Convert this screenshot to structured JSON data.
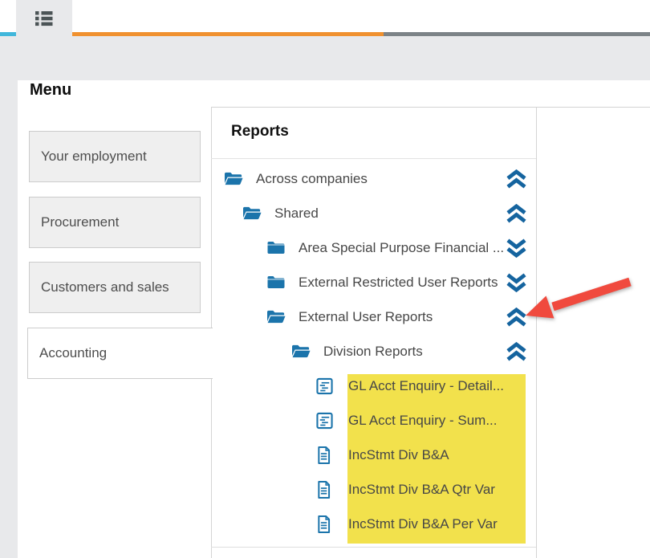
{
  "topbar": {
    "menu_tab_icon": "list-icon"
  },
  "page": {
    "title": "Menu"
  },
  "sidebar": {
    "items": [
      {
        "label": "Your employment",
        "active": false
      },
      {
        "label": "Procurement",
        "active": false
      },
      {
        "label": "Customers and sales",
        "active": false
      },
      {
        "label": "Accounting",
        "active": true
      }
    ]
  },
  "reports": {
    "title": "Reports",
    "tree": [
      {
        "label": "Across companies",
        "level": 0,
        "icon": "folder-open",
        "chevron": "collapse",
        "highlighted": false
      },
      {
        "label": "Shared",
        "level": 1,
        "icon": "folder-open",
        "chevron": "collapse",
        "highlighted": false
      },
      {
        "label": "Area Special Purpose Financial ...",
        "level": 2,
        "icon": "folder-closed",
        "chevron": "expand",
        "highlighted": false
      },
      {
        "label": "External Restricted User Reports",
        "level": 2,
        "icon": "folder-closed",
        "chevron": "expand",
        "highlighted": false
      },
      {
        "label": "External User Reports",
        "level": 2,
        "icon": "folder-open",
        "chevron": "collapse",
        "highlighted": false,
        "annotated": true
      },
      {
        "label": "Division Reports",
        "level": 3,
        "icon": "folder-open",
        "chevron": "collapse",
        "highlighted": false
      },
      {
        "label": "GL Acct Enquiry - Detail...",
        "level": 4,
        "icon": "doc-report",
        "chevron": "none",
        "highlighted": true
      },
      {
        "label": "GL Acct Enquiry - Sum...",
        "level": 4,
        "icon": "doc-report",
        "chevron": "none",
        "highlighted": true
      },
      {
        "label": "IncStmt Div B&A",
        "level": 4,
        "icon": "doc-page",
        "chevron": "none",
        "highlighted": true
      },
      {
        "label": "IncStmt Div B&A Qtr Var",
        "level": 4,
        "icon": "doc-page",
        "chevron": "none",
        "highlighted": true
      },
      {
        "label": "IncStmt Div B&A Per Var",
        "level": 4,
        "icon": "doc-page",
        "chevron": "none",
        "highlighted": true
      }
    ]
  },
  "annotations": {
    "arrow_target": "External User Reports collapse chevron",
    "highlighted_items_count": 5
  },
  "colors": {
    "stripe-cyan": "#41b7db",
    "stripe-orange": "#f0912f",
    "stripe-slate": "#7c8387",
    "page-gray": "#e8e9eb",
    "icon-blue": "#1b74ab",
    "chevron-blue": "#15649f",
    "highlight-yellow": "#f2e14c",
    "arrow-red": "#f04a3e"
  }
}
